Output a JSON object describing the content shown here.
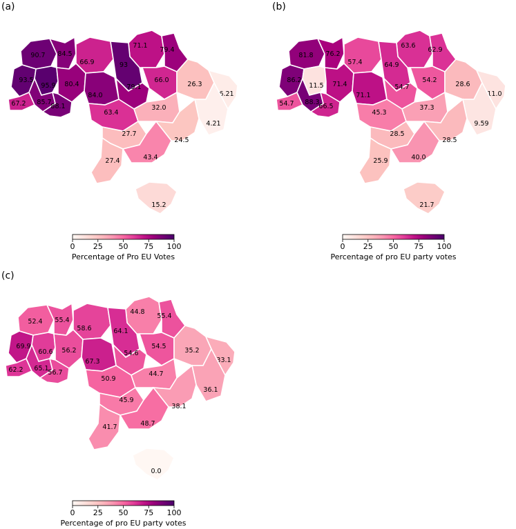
{
  "panels": [
    {
      "label": "(a)",
      "colorbar": {
        "ticks": [
          "0",
          "25",
          "50",
          "75",
          "100"
        ],
        "label": "Percentage of Pro EU Votes"
      },
      "regions": [
        {
          "value": "90.7"
        },
        {
          "value": "84.5"
        },
        {
          "value": "66.9"
        },
        {
          "value": "71.1"
        },
        {
          "value": "79.4"
        },
        {
          "value": "93.5"
        },
        {
          "value": "95.9"
        },
        {
          "value": "80.4"
        },
        {
          "value": "84.0"
        },
        {
          "value": "93"
        },
        {
          "value": "79.1"
        },
        {
          "value": "66.0"
        },
        {
          "value": "26.3"
        },
        {
          "value": "6.21"
        },
        {
          "value": "67.2"
        },
        {
          "value": "85.7"
        },
        {
          "value": "88.1"
        },
        {
          "value": "63.4"
        },
        {
          "value": "32.0"
        },
        {
          "value": "4.21"
        },
        {
          "value": "27.7"
        },
        {
          "value": "24.5"
        },
        {
          "value": "27.4"
        },
        {
          "value": "43.4"
        },
        {
          "value": "15.2"
        }
      ]
    },
    {
      "label": "(b)",
      "colorbar": {
        "ticks": [
          "0",
          "25",
          "50",
          "75",
          "100"
        ],
        "label": "Percentage of pro EU party votes"
      },
      "regions": [
        {
          "value": "81.8"
        },
        {
          "value": "76.2"
        },
        {
          "value": "57.4"
        },
        {
          "value": "63.6"
        },
        {
          "value": "62.9"
        },
        {
          "value": "86.2"
        },
        {
          "value": "11.5"
        },
        {
          "value": "71.4"
        },
        {
          "value": "71.1"
        },
        {
          "value": "64.9"
        },
        {
          "value": "54.7"
        },
        {
          "value": "54.2"
        },
        {
          "value": "28.6"
        },
        {
          "value": "11.0"
        },
        {
          "value": "54.7"
        },
        {
          "value": "88.3"
        },
        {
          "value": "66.5"
        },
        {
          "value": "45.3"
        },
        {
          "value": "37.3"
        },
        {
          "value": "9.59"
        },
        {
          "value": "28.5"
        },
        {
          "value": "28.5"
        },
        {
          "value": "25.9"
        },
        {
          "value": "40.0"
        },
        {
          "value": "21.7"
        }
      ]
    },
    {
      "label": "(c)",
      "colorbar": {
        "ticks": [
          "0",
          "25",
          "50",
          "75",
          "100"
        ],
        "label": "Percentage of pro EU party votes"
      },
      "regions": [
        {
          "value": "52.4"
        },
        {
          "value": "55.4"
        },
        {
          "value": "58.6"
        },
        {
          "value": "44.8"
        },
        {
          "value": "55.4"
        },
        {
          "value": "69.9"
        },
        {
          "value": "60.6"
        },
        {
          "value": "56.2"
        },
        {
          "value": "67.3"
        },
        {
          "value": "64.1"
        },
        {
          "value": "54.6"
        },
        {
          "value": "54.5"
        },
        {
          "value": "35.2"
        },
        {
          "value": "33.1"
        },
        {
          "value": "62.2"
        },
        {
          "value": "65.1"
        },
        {
          "value": "56.7"
        },
        {
          "value": "50.9"
        },
        {
          "value": "44.7"
        },
        {
          "value": "36.1"
        },
        {
          "value": "45.9"
        },
        {
          "value": "38.1"
        },
        {
          "value": "41.7"
        },
        {
          "value": "48.7"
        },
        {
          "value": "0.0"
        }
      ]
    }
  ]
}
